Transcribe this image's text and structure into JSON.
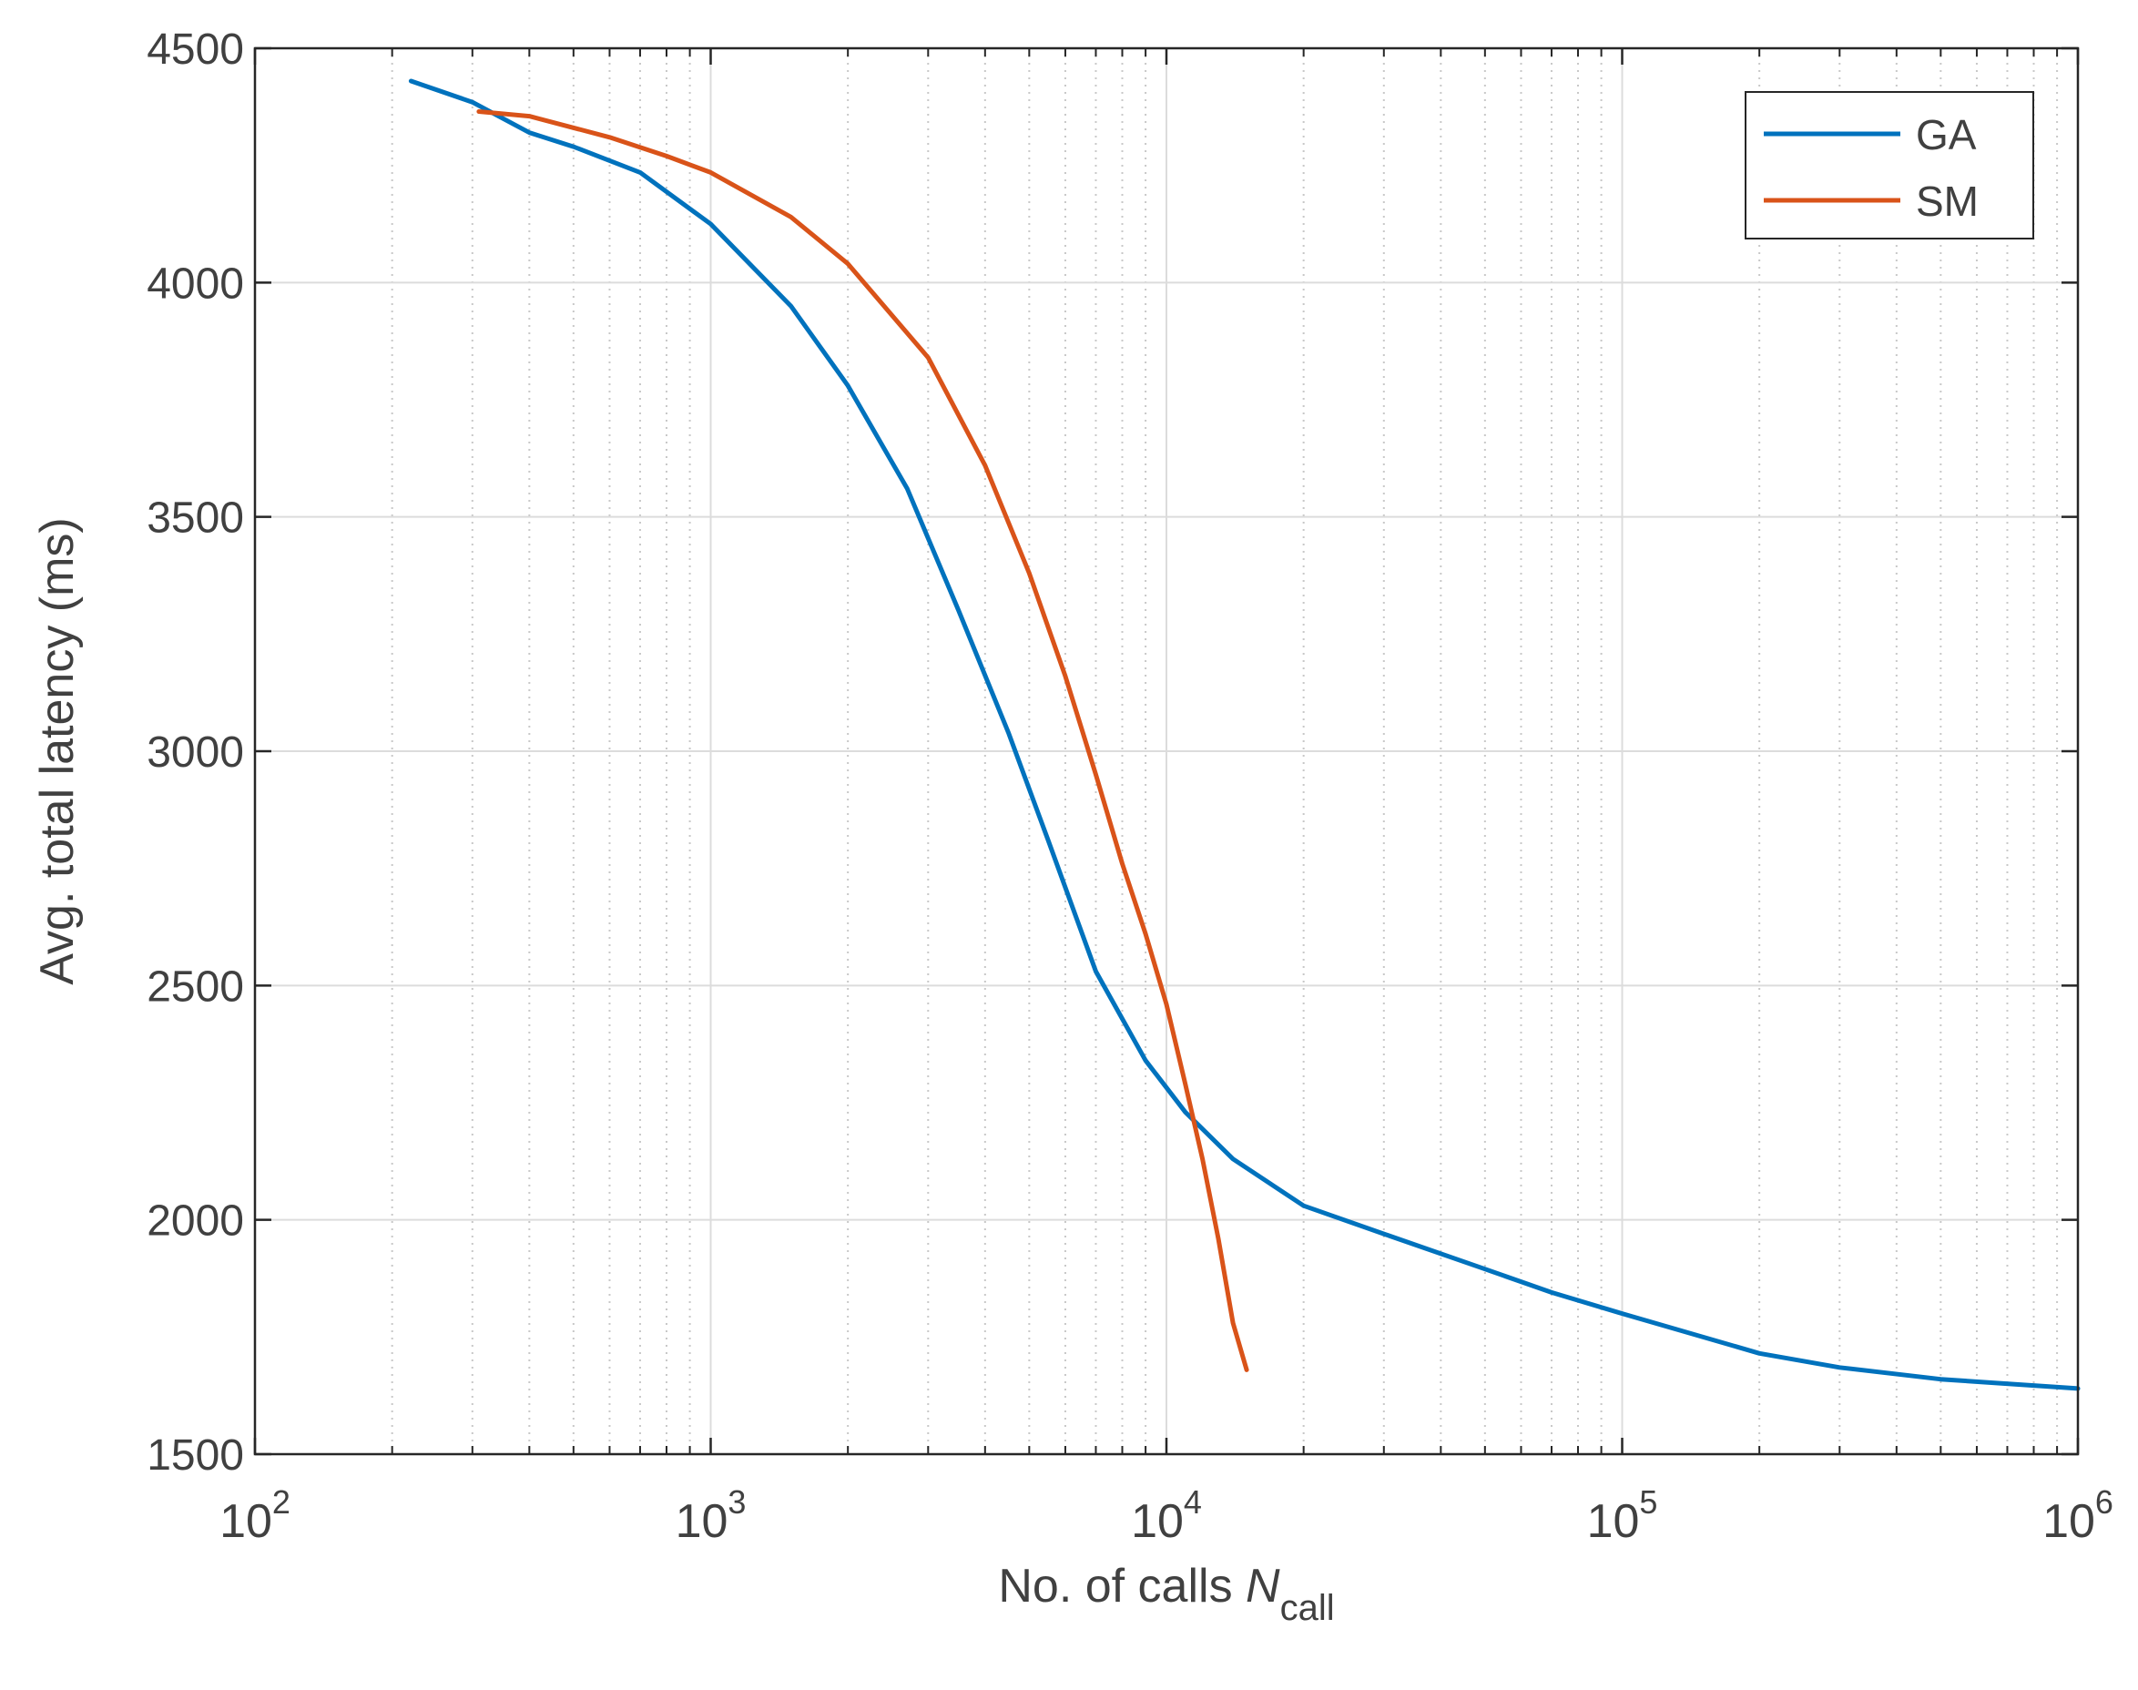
{
  "chart_data": {
    "type": "line",
    "title": "",
    "xlabel": "No. of calls",
    "xlabel_symbol": "N",
    "xlabel_subscript": "call",
    "ylabel": "Avg. total latency (ms)",
    "xscale": "log",
    "xlim": [
      100,
      1000000
    ],
    "ylim": [
      1500,
      4500
    ],
    "grid": true,
    "legend_position": "top-right",
    "x_ticks": [
      100,
      1000,
      10000,
      100000,
      1000000
    ],
    "x_tick_labels": [
      {
        "base": "10",
        "exp": "2"
      },
      {
        "base": "10",
        "exp": "3"
      },
      {
        "base": "10",
        "exp": "4"
      },
      {
        "base": "10",
        "exp": "5"
      },
      {
        "base": "10",
        "exp": "6"
      }
    ],
    "y_ticks": [
      1500,
      2000,
      2500,
      3000,
      3500,
      4000,
      4500
    ],
    "y_tick_labels": [
      "1500",
      "2000",
      "2500",
      "3000",
      "3500",
      "4000",
      "4500"
    ],
    "series": [
      {
        "name": "GA",
        "color": "#0072BD",
        "points": [
          [
            220,
            4430
          ],
          [
            300,
            4385
          ],
          [
            400,
            4320
          ],
          [
            500,
            4290
          ],
          [
            700,
            4235
          ],
          [
            1000,
            4125
          ],
          [
            1500,
            3950
          ],
          [
            2000,
            3780
          ],
          [
            2700,
            3560
          ],
          [
            3500,
            3300
          ],
          [
            4500,
            3040
          ],
          [
            5500,
            2810
          ],
          [
            7000,
            2530
          ],
          [
            9000,
            2340
          ],
          [
            11000,
            2230
          ],
          [
            14000,
            2130
          ],
          [
            20000,
            2030
          ],
          [
            30000,
            1970
          ],
          [
            50000,
            1895
          ],
          [
            70000,
            1845
          ],
          [
            100000,
            1800
          ],
          [
            200000,
            1715
          ],
          [
            300000,
            1685
          ],
          [
            500000,
            1660
          ],
          [
            1000000,
            1640
          ]
        ]
      },
      {
        "name": "SM",
        "color": "#D95319",
        "points": [
          [
            310,
            4365
          ],
          [
            400,
            4355
          ],
          [
            600,
            4310
          ],
          [
            800,
            4270
          ],
          [
            1000,
            4235
          ],
          [
            1500,
            4140
          ],
          [
            2000,
            4040
          ],
          [
            3000,
            3840
          ],
          [
            4000,
            3610
          ],
          [
            5000,
            3380
          ],
          [
            6000,
            3160
          ],
          [
            7000,
            2950
          ],
          [
            8000,
            2760
          ],
          [
            9000,
            2610
          ],
          [
            10000,
            2460
          ],
          [
            11000,
            2290
          ],
          [
            12000,
            2130
          ],
          [
            13000,
            1960
          ],
          [
            14000,
            1780
          ],
          [
            15000,
            1680
          ]
        ]
      }
    ]
  }
}
